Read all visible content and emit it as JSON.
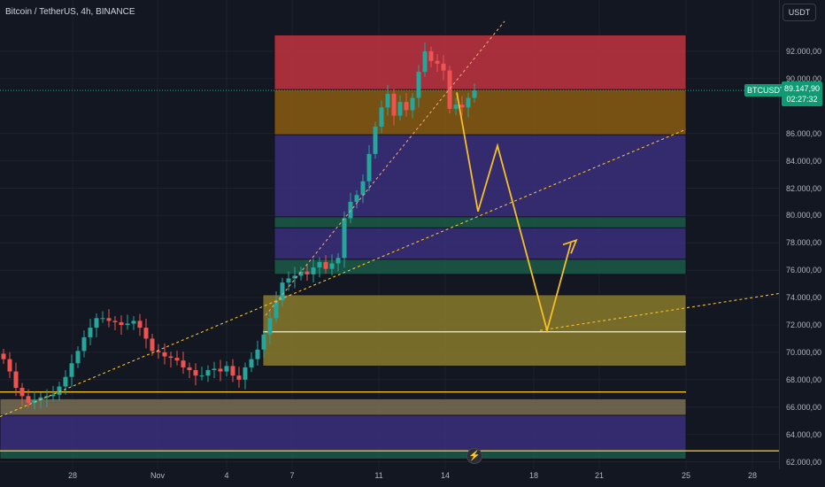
{
  "header": {
    "title": "Bitcoin / TetherUS, 4h, BINANCE"
  },
  "currency_button": "USDT",
  "price_axis": {
    "ticks": [
      "92.000,00",
      "90.000,00",
      "86.000,00",
      "84.000,00",
      "82.000,00",
      "80.000,00",
      "78.000,00",
      "76.000,00",
      "74.000,00",
      "72.000,00",
      "70.000,00",
      "68.000,00",
      "66.000,00",
      "64.000,00",
      "62.000,00"
    ]
  },
  "time_axis": {
    "ticks": [
      "28",
      "Nov",
      "4",
      "7",
      "11",
      "14",
      "18",
      "21",
      "25",
      "28"
    ]
  },
  "symbol_badge": "BTCUSDT",
  "last_price": {
    "value": "89.147,90",
    "countdown": "02:27:32"
  },
  "bolt_icon_glyph": "⚡",
  "colors": {
    "background": "#131722",
    "up": "#26a69a",
    "down": "#ef5350",
    "projection": "#f5c02a",
    "price_badge": "#0e9b73"
  },
  "chart_data": {
    "type": "candlestick",
    "symbol": "Bitcoin / TetherUS",
    "timeframe": "4h",
    "exchange": "BINANCE",
    "last_price": 89147.9,
    "y_range": [
      62000,
      94000
    ],
    "zones": [
      {
        "from": 89200,
        "to": 93200,
        "color": "#c2323f"
      },
      {
        "from": 85900,
        "to": 89200,
        "color": "#8a5a12"
      },
      {
        "from": 79900,
        "to": 85900,
        "color": "#3a2f7a"
      },
      {
        "from": 79100,
        "to": 79900,
        "color": "#1c5a48"
      },
      {
        "from": 76800,
        "to": 79100,
        "color": "#3a2f7a"
      },
      {
        "from": 75700,
        "to": 76800,
        "color": "#1c5a48"
      },
      {
        "from": 69000,
        "to": 74200,
        "color": "#8a7a2a"
      },
      {
        "from": 65400,
        "to": 66600,
        "color": "#7a6e55"
      },
      {
        "from": 62800,
        "to": 65400,
        "color": "#3a2f7a"
      },
      {
        "from": 62200,
        "to": 62800,
        "color": "#1c5a48"
      }
    ],
    "horizontal_lines": [
      {
        "price": 71500,
        "color": "#f5f0c8"
      },
      {
        "price": 67100,
        "color": "#f5c02a"
      },
      {
        "price": 62800,
        "color": "#f5c02a"
      }
    ],
    "projection_path": [
      89000,
      80300,
      85100,
      71600,
      78000
    ],
    "closes": [
      69500,
      68600,
      67400,
      66800,
      66300,
      66500,
      66700,
      66800,
      66900,
      67500,
      68200,
      69200,
      70100,
      71100,
      71800,
      72500,
      72500,
      72300,
      72200,
      72000,
      72100,
      72300,
      71800,
      71000,
      70100,
      70000,
      69700,
      69600,
      69400,
      68900,
      68700,
      68300,
      68300,
      68700,
      68800,
      68600,
      69000,
      68300,
      68000,
      68900,
      69500,
      70200,
      71300,
      72500,
      73800,
      75100,
      75400,
      75600,
      75900,
      75700,
      76200,
      76600,
      76100,
      76500,
      76900,
      79800,
      81000,
      81500,
      82500,
      84500,
      86500,
      87900,
      88900,
      87300,
      88300,
      87700,
      88600,
      90500,
      92000,
      91300,
      91100,
      90600,
      87800,
      88100,
      87900,
      88600,
      89148
    ]
  }
}
